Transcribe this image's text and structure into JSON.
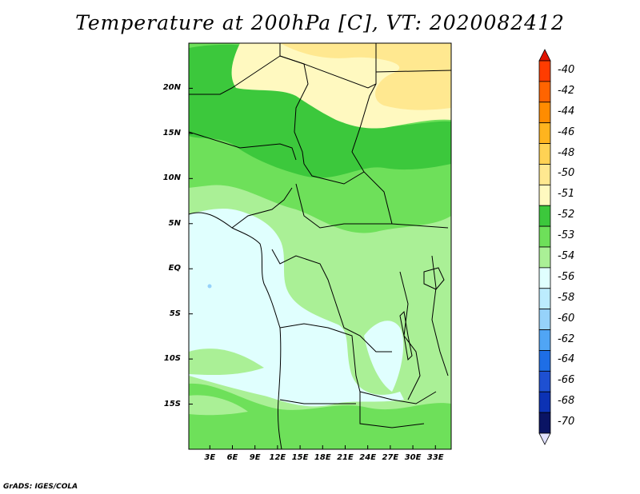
{
  "title": "Temperature at 200hPa [C], VT: 2020082412",
  "footer": "GrADS: IGES/COLA",
  "lat_labels": [
    "20N",
    "15N",
    "10N",
    "5N",
    "EQ",
    "5S",
    "10S",
    "15S"
  ],
  "lat_values": [
    20,
    15,
    10,
    5,
    0,
    -5,
    -10,
    -15
  ],
  "lon_labels": [
    "3E",
    "6E",
    "9E",
    "12E",
    "15E",
    "18E",
    "21E",
    "24E",
    "27E",
    "30E",
    "33E"
  ],
  "lon_values": [
    3,
    6,
    9,
    12,
    15,
    18,
    21,
    24,
    27,
    30,
    33
  ],
  "map_extent": {
    "lon": [
      0.2,
      35.1
    ],
    "lat": [
      -20,
      25
    ]
  },
  "colorbar": {
    "labels": [
      "-40",
      "-42",
      "-44",
      "-46",
      "-48",
      "-50",
      "-51",
      "-52",
      "-53",
      "-54",
      "-56",
      "-58",
      "-60",
      "-62",
      "-64",
      "-66",
      "-68",
      "-70"
    ],
    "colors": [
      "#ff3c00",
      "#ff6400",
      "#ff8c00",
      "#ffb41e",
      "#ffd254",
      "#ffe890",
      "#fff9c0",
      "#3cc83c",
      "#6ee05a",
      "#aaf096",
      "#e0fffe",
      "#bcecfe",
      "#96d2fa",
      "#50a5f5",
      "#1e6ee6",
      "#1e50d2",
      "#0c32b4",
      "#0a1464"
    ],
    "top_arrow_color": "#e11400",
    "bottom_arrow_color": "#e0e0ff"
  },
  "palette": {
    "yellow_light": "#fff9c0",
    "yellow": "#ffe890",
    "green_dark": "#3cc83c",
    "green_mid": "#6ee05a",
    "green_light": "#aaf096",
    "cyan_light": "#e0fffe",
    "blue_pale": "#bcecfe"
  }
}
